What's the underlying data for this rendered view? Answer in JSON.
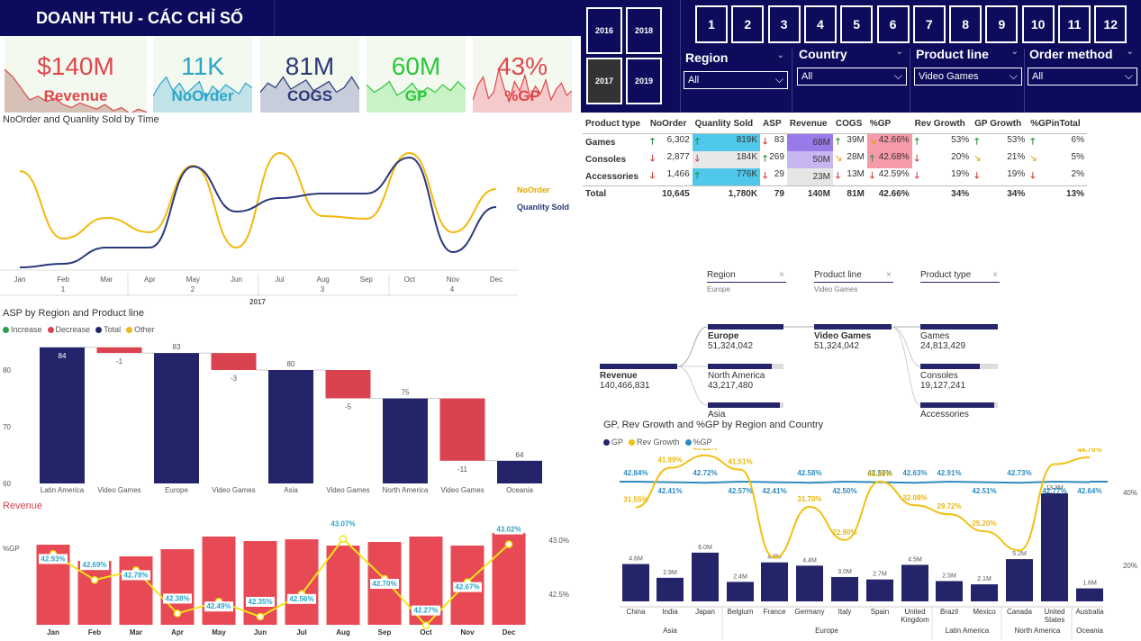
{
  "title": "DOANH THU - CÁC CHỈ SỐ",
  "years": [
    "2016",
    "2018",
    "2017",
    "2019"
  ],
  "selected_year": "2017",
  "months": [
    "1",
    "2",
    "3",
    "4",
    "5",
    "6",
    "7",
    "8",
    "9",
    "10",
    "11",
    "12"
  ],
  "slicers": [
    {
      "label": "Region",
      "value": "All"
    },
    {
      "label": "Country",
      "value": "All"
    },
    {
      "label": "Product line",
      "value": "Video Games"
    },
    {
      "label": "Order method",
      "value": "All"
    }
  ],
  "kpis": [
    {
      "value": "$140M",
      "name": "Revenue",
      "color": "#e0474c",
      "fill": "#c9a9a0"
    },
    {
      "value": "11K",
      "name": "NoOrder",
      "color": "#2aa6c8",
      "fill": "#a9d8e6"
    },
    {
      "value": "81M",
      "name": "COGS",
      "color": "#2a3a78",
      "fill": "#b3bad1"
    },
    {
      "value": "60M",
      "name": "GP",
      "color": "#2ac83a",
      "fill": "#b8efb6"
    },
    {
      "value": "43%",
      "name": "%GP",
      "color": "#e0474c",
      "fill": "#f4b8ba"
    }
  ],
  "line_chart": {
    "title": "NoOrder and Quanlity Sold by Time",
    "series_names": [
      "NoOrder",
      "Quanlity Sold"
    ],
    "months": [
      "Jan",
      "Feb",
      "Mar",
      "Apr",
      "May",
      "Jun",
      "Jul",
      "Aug",
      "Sep",
      "Oct",
      "Nov",
      "Dec"
    ],
    "quarters": [
      "1",
      "2",
      "3",
      "4"
    ],
    "year": "2017"
  },
  "waterfall": {
    "title": "ASP by Region and Product line",
    "legend": [
      "Increase",
      "Decrease",
      "Total",
      "Other"
    ],
    "y_ticks": [
      "80",
      "70",
      "60"
    ],
    "categories": [
      "Latin America",
      "Video Games",
      "Europe",
      "Video Games",
      "Asia",
      "Video Games",
      "North America",
      "Video Games",
      "Oceania"
    ],
    "labels": [
      "84",
      "-1",
      "83",
      "-3",
      "80",
      "-5",
      "75",
      "-11",
      "64"
    ]
  },
  "revenue_chart": {
    "title": "Revenue",
    "ylabel": "%GP",
    "right_ticks": [
      "43.0%",
      "42.5%"
    ],
    "months": [
      "Jan",
      "Feb",
      "Mar",
      "Apr",
      "May",
      "Jun",
      "Jul",
      "Aug",
      "Sep",
      "Oct",
      "Nov",
      "Dec"
    ],
    "gp_labels": [
      "42.93%",
      "42.69%",
      "42.78%",
      "42.38%",
      "42.49%",
      "42.35%",
      "42.56%",
      "43.07%",
      "42.70%",
      "42.27%",
      "42.67%",
      "43.02%"
    ]
  },
  "matrix": {
    "headers": [
      "Product type",
      "NoOrder",
      "Quanlity Sold",
      "ASP",
      "Revenue",
      "COGS",
      "%GP",
      "Rev Growth",
      "GP Growth",
      "%GPinTotal"
    ],
    "rows": [
      {
        "type": "Games",
        "noorder": "6,302",
        "qty": "819K",
        "asp": "83",
        "rev": "68M",
        "cogs": "39M",
        "gp": "42.66%",
        "revg": "53%",
        "gpg": "53%",
        "gpt": "6%"
      },
      {
        "type": "Consoles",
        "noorder": "2,877",
        "qty": "184K",
        "asp": "269",
        "rev": "50M",
        "cogs": "28M",
        "gp": "42.68%",
        "revg": "20%",
        "gpg": "21%",
        "gpt": "5%"
      },
      {
        "type": "Accessories",
        "noorder": "1,466",
        "qty": "776K",
        "asp": "29",
        "rev": "23M",
        "cogs": "13M",
        "gp": "42.59%",
        "revg": "19%",
        "gpg": "19%",
        "gpt": "2%"
      }
    ],
    "total": {
      "type": "Total",
      "noorder": "10,645",
      "qty": "1,780K",
      "asp": "79",
      "rev": "140M",
      "cogs": "81M",
      "gp": "42.66%",
      "revg": "34%",
      "gpg": "34%",
      "gpt": "13%"
    }
  },
  "tree": {
    "headers": [
      {
        "label": "Region",
        "sub": "Europe"
      },
      {
        "label": "Product line",
        "sub": "Video Games"
      },
      {
        "label": "Product type",
        "sub": ""
      }
    ],
    "root": {
      "label": "Revenue",
      "value": "140,466,831"
    },
    "regions": [
      {
        "label": "Europe",
        "value": "51,324,042",
        "share": 1.0
      },
      {
        "label": "North America",
        "value": "43,217,480",
        "share": 0.84
      },
      {
        "label": "Asia",
        "value": "",
        "share": 0.95
      }
    ],
    "line": {
      "label": "Video Games",
      "value": "51,324,042",
      "share": 1.0
    },
    "types": [
      {
        "label": "Games",
        "value": "24,813,429",
        "share": 1.0
      },
      {
        "label": "Consoles",
        "value": "19,127,241",
        "share": 0.77
      },
      {
        "label": "Accessories",
        "value": "",
        "share": 0.95
      }
    ]
  },
  "gp_chart": {
    "title": "GP, Rev Growth and %GP by Region and Country",
    "legend": [
      "GP",
      "Rev Growth",
      "%GP"
    ],
    "right_ticks": [
      "40%",
      "20%"
    ],
    "countries": [
      "China",
      "India",
      "Japan",
      "Belgium",
      "France",
      "Germany",
      "Italy",
      "Spain",
      "United Kingdom",
      "Brazil",
      "Mexico",
      "Canada",
      "United States",
      "Australia"
    ],
    "regions": [
      "Asia",
      "Europe",
      "Latin America",
      "North America",
      "Oceania"
    ],
    "gp_values": [
      4.6,
      2.9,
      6.0,
      2.4,
      4.8,
      4.4,
      3.0,
      2.7,
      4.5,
      2.5,
      2.1,
      5.2,
      13.3,
      1.6
    ],
    "gp_labels": [
      "4.6M",
      "2.9M",
      "6.0M",
      "2.4M",
      "4.8M",
      "4.4M",
      "3.0M",
      "2.7M",
      "4.5M",
      "2.5M",
      "2.1M",
      "5.2M",
      "13.3M",
      "1.6M"
    ],
    "rev_growth": [
      31.55,
      41.99,
      45.28,
      41.51,
      18.23,
      31.7,
      22.9,
      38.35,
      32.08,
      29.72,
      25.2,
      20.15,
      42.97,
      44.76
    ],
    "rev_growth_labels": [
      "31.55%",
      "41.99%",
      "45.28%",
      "41.51%",
      "",
      "31.70%",
      "22.90%",
      "38.35%",
      "32.08%",
      "29.72%",
      "25.20%",
      "",
      "",
      "44.76%"
    ],
    "pct_gp_labels": [
      "42.84%",
      "42.41%",
      "42.72%",
      "42.57%",
      "42.41%",
      "42.58%",
      "42.50%",
      "42.53%",
      "42.63%",
      "42.91%",
      "42.51%",
      "42.73%",
      "42.77%",
      "42.64%"
    ]
  }
}
